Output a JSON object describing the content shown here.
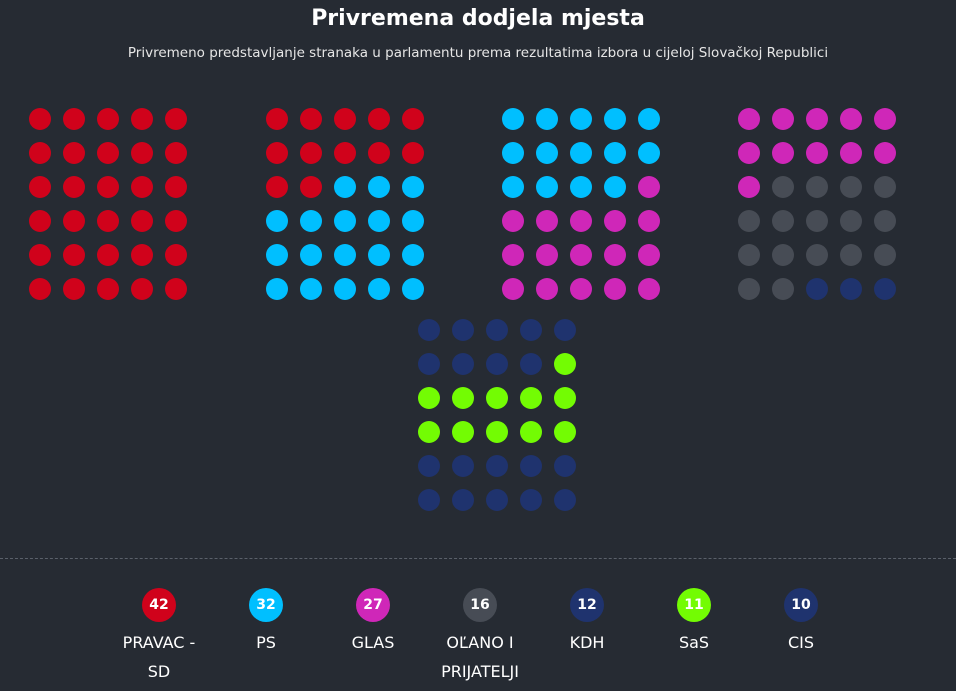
{
  "chart_data": {
    "type": "waffle",
    "title": "Privremena dodjela mjesta",
    "subtitle": "Privremeno predstavljanje stranaka u parlamentu prema rezultatima izbora u cijeloj Slovačkoj Republici",
    "total_seats": 150,
    "parties": [
      {
        "name": "PRAVAC - SD",
        "seats": 42,
        "color": "#d0021b"
      },
      {
        "name": "PS",
        "seats": 32,
        "color": "#00bfff"
      },
      {
        "name": "GLAS",
        "seats": 27,
        "color": "#cf27b8"
      },
      {
        "name": "OĽANO I PRIJATELJI",
        "seats": 16,
        "color": "#474c55"
      },
      {
        "name": "KDH",
        "seats": 12,
        "color": "#1f336e"
      },
      {
        "name": "SaS",
        "seats": 11,
        "color": "#73fc03"
      },
      {
        "name": "CIS",
        "seats": 10,
        "color": "#1f336e"
      }
    ]
  }
}
